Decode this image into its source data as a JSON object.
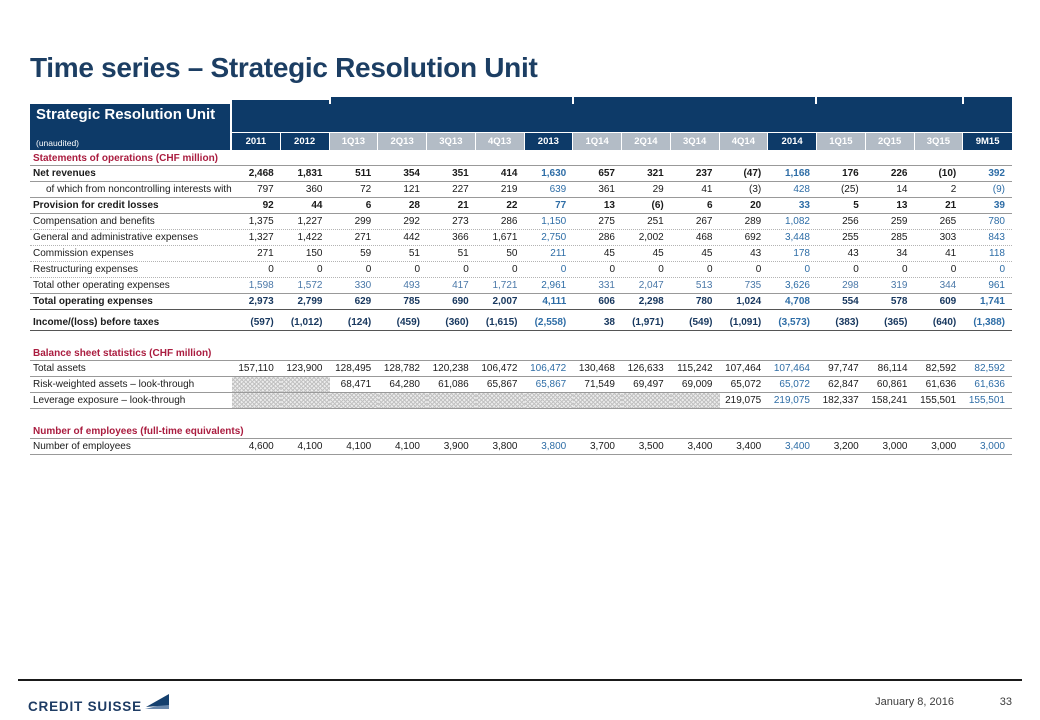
{
  "slide": {
    "title": "Time series – Strategic Resolution Unit",
    "footer": {
      "logo": "CREDIT SUISSE",
      "date": "January 8, 2016",
      "page": "33"
    }
  },
  "colors": {
    "navy": "#0d3a68",
    "quarter_header": "#b3bcc6",
    "blue_value": "#2e6da6",
    "light_blue_value": "#4a78a8",
    "navy_value": "#17375e",
    "section_red": "#aa1c3f"
  },
  "table": {
    "corner": {
      "title": "Strategic Resolution Unit",
      "subtitle": "(unaudited)"
    },
    "column_groups": [
      {
        "span": 2
      },
      {
        "span": 5
      },
      {
        "span": 5
      },
      {
        "span": 3
      },
      {
        "span": 1
      }
    ],
    "columns": [
      {
        "label": "2011",
        "dark": true,
        "blue": false
      },
      {
        "label": "2012",
        "dark": true,
        "blue": false
      },
      {
        "label": "1Q13",
        "dark": false,
        "blue": false
      },
      {
        "label": "2Q13",
        "dark": false,
        "blue": false
      },
      {
        "label": "3Q13",
        "dark": false,
        "blue": false
      },
      {
        "label": "4Q13",
        "dark": false,
        "blue": false
      },
      {
        "label": "2013",
        "dark": true,
        "blue": true
      },
      {
        "label": "1Q14",
        "dark": false,
        "blue": false
      },
      {
        "label": "2Q14",
        "dark": false,
        "blue": false
      },
      {
        "label": "3Q14",
        "dark": false,
        "blue": false
      },
      {
        "label": "4Q14",
        "dark": false,
        "blue": false
      },
      {
        "label": "2014",
        "dark": true,
        "blue": true
      },
      {
        "label": "1Q15",
        "dark": false,
        "blue": false
      },
      {
        "label": "2Q15",
        "dark": false,
        "blue": false
      },
      {
        "label": "3Q15",
        "dark": false,
        "blue": false
      },
      {
        "label": "9M15",
        "dark": true,
        "blue": true
      }
    ],
    "sections": [
      {
        "heading": "Statements of operations (CHF million)",
        "rows": [
          {
            "label": "Net revenues",
            "style": "bold",
            "border": "solid",
            "values": [
              "2,468",
              "1,831",
              "511",
              "354",
              "351",
              "414",
              "1,630",
              "657",
              "321",
              "237",
              "(47)",
              "1,168",
              "176",
              "226",
              "(10)",
              "392"
            ]
          },
          {
            "label": "of which from noncontrolling interests without SEI",
            "style": "indent",
            "border": "solid",
            "values": [
              "797",
              "360",
              "72",
              "121",
              "227",
              "219",
              "639",
              "361",
              "29",
              "41",
              "(3)",
              "428",
              "(25)",
              "14",
              "2",
              "(9)"
            ]
          },
          {
            "label": "Provision for credit losses",
            "style": "bold",
            "border": "solid",
            "values": [
              "92",
              "44",
              "6",
              "28",
              "21",
              "22",
              "77",
              "13",
              "(6)",
              "6",
              "20",
              "33",
              "5",
              "13",
              "21",
              "39"
            ]
          },
          {
            "label": "Compensation and benefits",
            "style": "normal",
            "border": "dotted",
            "values": [
              "1,375",
              "1,227",
              "299",
              "292",
              "273",
              "286",
              "1,150",
              "275",
              "251",
              "267",
              "289",
              "1,082",
              "256",
              "259",
              "265",
              "780"
            ]
          },
          {
            "label": "General and administrative expenses",
            "style": "normal",
            "border": "dotted",
            "values": [
              "1,327",
              "1,422",
              "271",
              "442",
              "366",
              "1,671",
              "2,750",
              "286",
              "2,002",
              "468",
              "692",
              "3,448",
              "255",
              "285",
              "303",
              "843"
            ]
          },
          {
            "label": "Commission expenses",
            "style": "normal",
            "border": "dotted",
            "values": [
              "271",
              "150",
              "59",
              "51",
              "51",
              "50",
              "211",
              "45",
              "45",
              "45",
              "43",
              "178",
              "43",
              "34",
              "41",
              "118"
            ]
          },
          {
            "label": "Restructuring expenses",
            "style": "normal",
            "border": "dotted",
            "values": [
              "0",
              "0",
              "0",
              "0",
              "0",
              "0",
              "0",
              "0",
              "0",
              "0",
              "0",
              "0",
              "0",
              "0",
              "0",
              "0"
            ]
          },
          {
            "label": "Total other operating expenses",
            "style": "bluerow",
            "border": "solid",
            "values": [
              "1,598",
              "1,572",
              "330",
              "493",
              "417",
              "1,721",
              "2,961",
              "331",
              "2,047",
              "513",
              "735",
              "3,626",
              "298",
              "319",
              "344",
              "961"
            ]
          },
          {
            "label": "Total operating expenses",
            "style": "navybold",
            "border": "strong",
            "values": [
              "2,973",
              "2,799",
              "629",
              "785",
              "690",
              "2,007",
              "4,111",
              "606",
              "2,298",
              "780",
              "1,024",
              "4,708",
              "554",
              "578",
              "609",
              "1,741"
            ]
          },
          {
            "label": "Income/(loss) before taxes",
            "style": "navybold",
            "border": "strong",
            "gap_before": true,
            "values": [
              "(597)",
              "(1,012)",
              "(124)",
              "(459)",
              "(360)",
              "(1,615)",
              "(2,558)",
              "38",
              "(1,971)",
              "(549)",
              "(1,091)",
              "(3,573)",
              "(383)",
              "(365)",
              "(640)",
              "(1,388)"
            ]
          }
        ]
      },
      {
        "heading": "Balance sheet statistics (CHF million)",
        "rows": [
          {
            "label": "Total assets",
            "style": "normal",
            "border": "solid",
            "values": [
              "157,110",
              "123,900",
              "128,495",
              "128,782",
              "120,238",
              "106,472",
              "106,472",
              "130,468",
              "126,633",
              "115,242",
              "107,464",
              "107,464",
              "97,747",
              "86,114",
              "82,592",
              "82,592"
            ]
          },
          {
            "label": "Risk-weighted assets – look-through",
            "style": "normal",
            "border": "solid",
            "values": [
              "HATCH",
              "HATCH",
              "68,471",
              "64,280",
              "61,086",
              "65,867",
              "65,867",
              "71,549",
              "69,497",
              "69,009",
              "65,072",
              "65,072",
              "62,847",
              "60,861",
              "61,636",
              "61,636"
            ]
          },
          {
            "label": "Leverage exposure – look-through",
            "style": "normal",
            "border": "solid",
            "values": [
              "HATCH",
              "HATCH",
              "HATCH",
              "HATCH",
              "HATCH",
              "HATCH",
              "HATCH",
              "HATCH",
              "HATCH",
              "HATCH",
              "219,075",
              "219,075",
              "182,337",
              "158,241",
              "155,501",
              "155,501"
            ]
          }
        ]
      },
      {
        "heading": "Number of employees (full-time equivalents)",
        "rows": [
          {
            "label": "Number of employees",
            "style": "normal",
            "border": "solid",
            "values": [
              "4,600",
              "4,100",
              "4,100",
              "4,100",
              "3,900",
              "3,800",
              "3,800",
              "3,700",
              "3,500",
              "3,400",
              "3,400",
              "3,400",
              "3,200",
              "3,000",
              "3,000",
              "3,000"
            ]
          }
        ]
      }
    ]
  }
}
